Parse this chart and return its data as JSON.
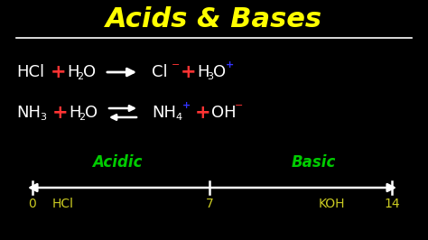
{
  "bg_color": "#000000",
  "title": "Acids & Bases",
  "title_color": "#FFFF00",
  "title_fontsize": 22,
  "white": "#FFFFFF",
  "red": "#FF3333",
  "blue": "#3333FF",
  "green": "#00CC00",
  "yellow": "#CCCC22",
  "acidic_label": "Acidic",
  "basic_label": "Basic",
  "fig_w": 4.74,
  "fig_h": 2.66,
  "dpi": 100
}
